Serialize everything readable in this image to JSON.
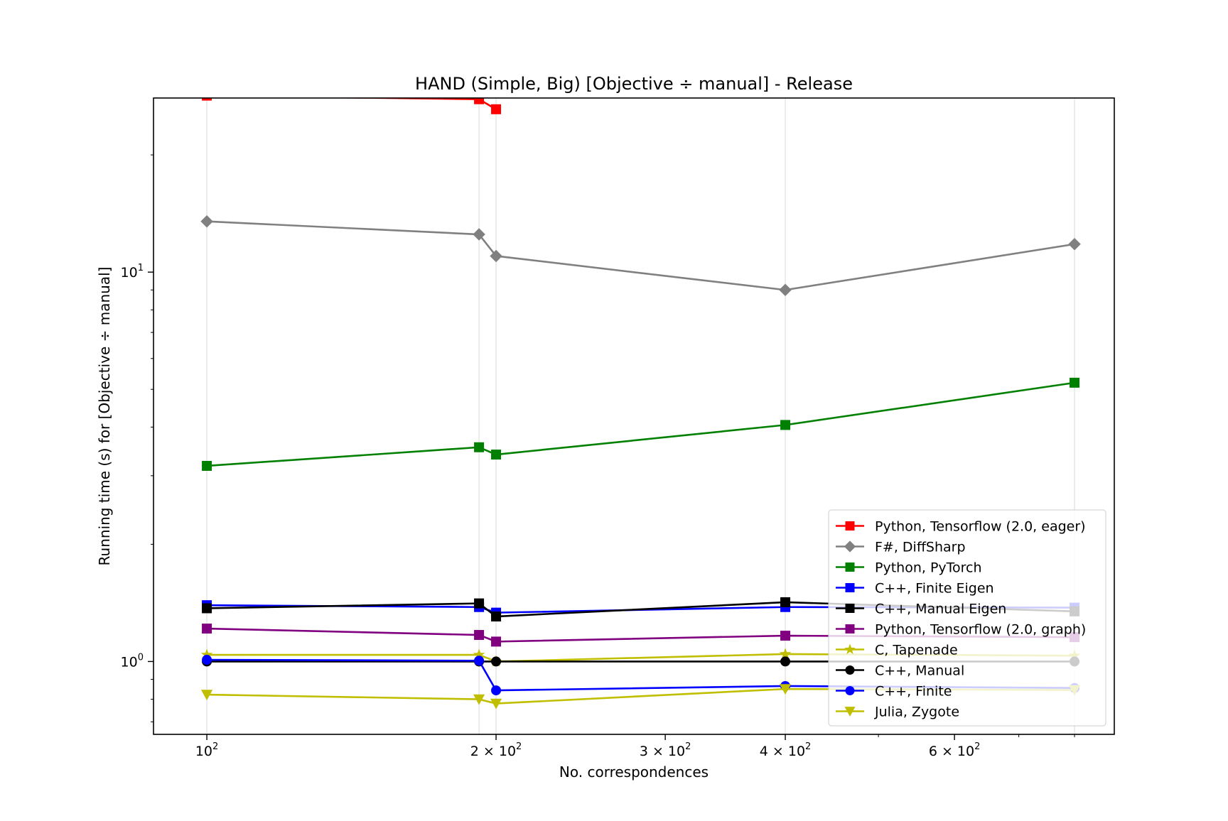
{
  "chart_data": {
    "type": "line",
    "title": "HAND (Simple, Big) [Objective ÷ manual] - Release",
    "xlabel": "No. correspondences",
    "ylabel": "Running time (s) for [Objective ÷ manual]",
    "xscale": "log",
    "yscale": "log",
    "xlim": [
      88,
      880
    ],
    "ylim": [
      0.65,
      28
    ],
    "grid": "vertical lines at data x values",
    "legend_position": "lower right",
    "x_ticks": [
      {
        "value": 100,
        "base": "10",
        "exp": "2"
      },
      {
        "value": 200,
        "base": "2 × 10",
        "exp": "2"
      },
      {
        "value": 300,
        "base": "3 × 10",
        "exp": "2"
      },
      {
        "value": 400,
        "base": "4 × 10",
        "exp": "2"
      },
      {
        "value": 600,
        "base": "6 × 10",
        "exp": "2"
      }
    ],
    "x_minor_ticks": [
      500,
      700,
      800
    ],
    "y_ticks": [
      {
        "value": 1,
        "base": "10",
        "exp": "0"
      },
      {
        "value": 10,
        "base": "10",
        "exp": "1"
      }
    ],
    "y_minor_ticks": [
      0.7,
      0.8,
      0.9,
      2,
      3,
      4,
      5,
      6,
      7,
      8,
      9,
      20
    ],
    "series": [
      {
        "name": "Python, Tensorflow (2.0, eager)",
        "color": "#ff0000",
        "marker": "square",
        "x": [
          100,
          192,
          200
        ],
        "y": [
          28.4,
          27.8,
          26.2
        ]
      },
      {
        "name": "F#, DiffSharp",
        "color": "#808080",
        "marker": "diamond",
        "x": [
          100,
          192,
          200,
          400,
          800
        ],
        "y": [
          13.5,
          12.5,
          11.0,
          9.0,
          11.8
        ]
      },
      {
        "name": "Python, PyTorch",
        "color": "#008000",
        "marker": "square",
        "x": [
          100,
          192,
          200,
          400,
          800
        ],
        "y": [
          3.18,
          3.55,
          3.4,
          4.05,
          5.2
        ]
      },
      {
        "name": "C++, Finite Eigen",
        "color": "#0000ff",
        "marker": "square",
        "x": [
          100,
          192,
          200,
          400,
          800
        ],
        "y": [
          1.395,
          1.38,
          1.335,
          1.38,
          1.375
        ]
      },
      {
        "name": "C++, Manual Eigen",
        "color": "#000000",
        "marker": "square",
        "x": [
          100,
          192,
          200,
          400,
          800
        ],
        "y": [
          1.37,
          1.41,
          1.305,
          1.42,
          1.345
        ]
      },
      {
        "name": "Python, Tensorflow (2.0, graph)",
        "color": "#800080",
        "marker": "square",
        "x": [
          100,
          192,
          200,
          400,
          800
        ],
        "y": [
          1.215,
          1.17,
          1.125,
          1.165,
          1.155
        ]
      },
      {
        "name": "C, Tapenade",
        "color": "#bfbf00",
        "marker": "star",
        "x": [
          100,
          192,
          200,
          400,
          800
        ],
        "y": [
          1.04,
          1.04,
          1.0,
          1.045,
          1.035
        ]
      },
      {
        "name": "C++, Manual",
        "color": "#000000",
        "marker": "circle",
        "x": [
          100,
          192,
          200,
          400,
          800
        ],
        "y": [
          1.0,
          1.0,
          1.0,
          1.0,
          1.0
        ]
      },
      {
        "name": "C++, Finite",
        "color": "#0000ff",
        "marker": "circle",
        "x": [
          100,
          192,
          200,
          400,
          800
        ],
        "y": [
          1.01,
          1.005,
          0.843,
          0.865,
          0.855
        ]
      },
      {
        "name": "Julia, Zygote",
        "color": "#bfbf00",
        "marker": "triangle_down",
        "x": [
          100,
          192,
          200,
          400,
          800
        ],
        "y": [
          0.822,
          0.8,
          0.78,
          0.85,
          0.845
        ]
      }
    ]
  }
}
